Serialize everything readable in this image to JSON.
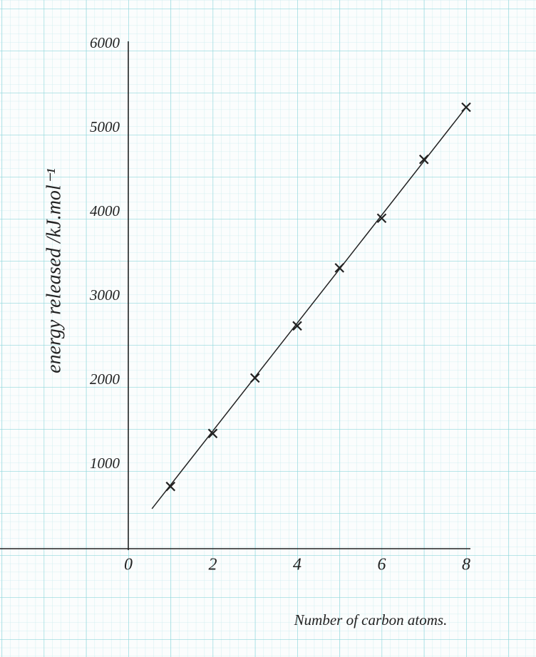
{
  "chart_data": {
    "type": "scatter",
    "xlabel": "Number of carbon atoms.",
    "ylabel": "energy released /kJ.mol⁻¹",
    "x": [
      1,
      2,
      3,
      4,
      5,
      6,
      7,
      8
    ],
    "values": [
      740,
      1370,
      2030,
      2650,
      3340,
      3930,
      4630,
      5250
    ],
    "fit": {
      "x": [
        0.56,
        8
      ],
      "values": [
        475,
        5250
      ]
    },
    "color": "#222222",
    "xlim": [
      0,
      8
    ],
    "ylim": [
      0,
      6000
    ],
    "xticks": [
      0,
      2,
      4,
      6,
      8
    ],
    "yticks": [
      1000,
      2000,
      3000,
      4000,
      5000,
      6000
    ]
  }
}
